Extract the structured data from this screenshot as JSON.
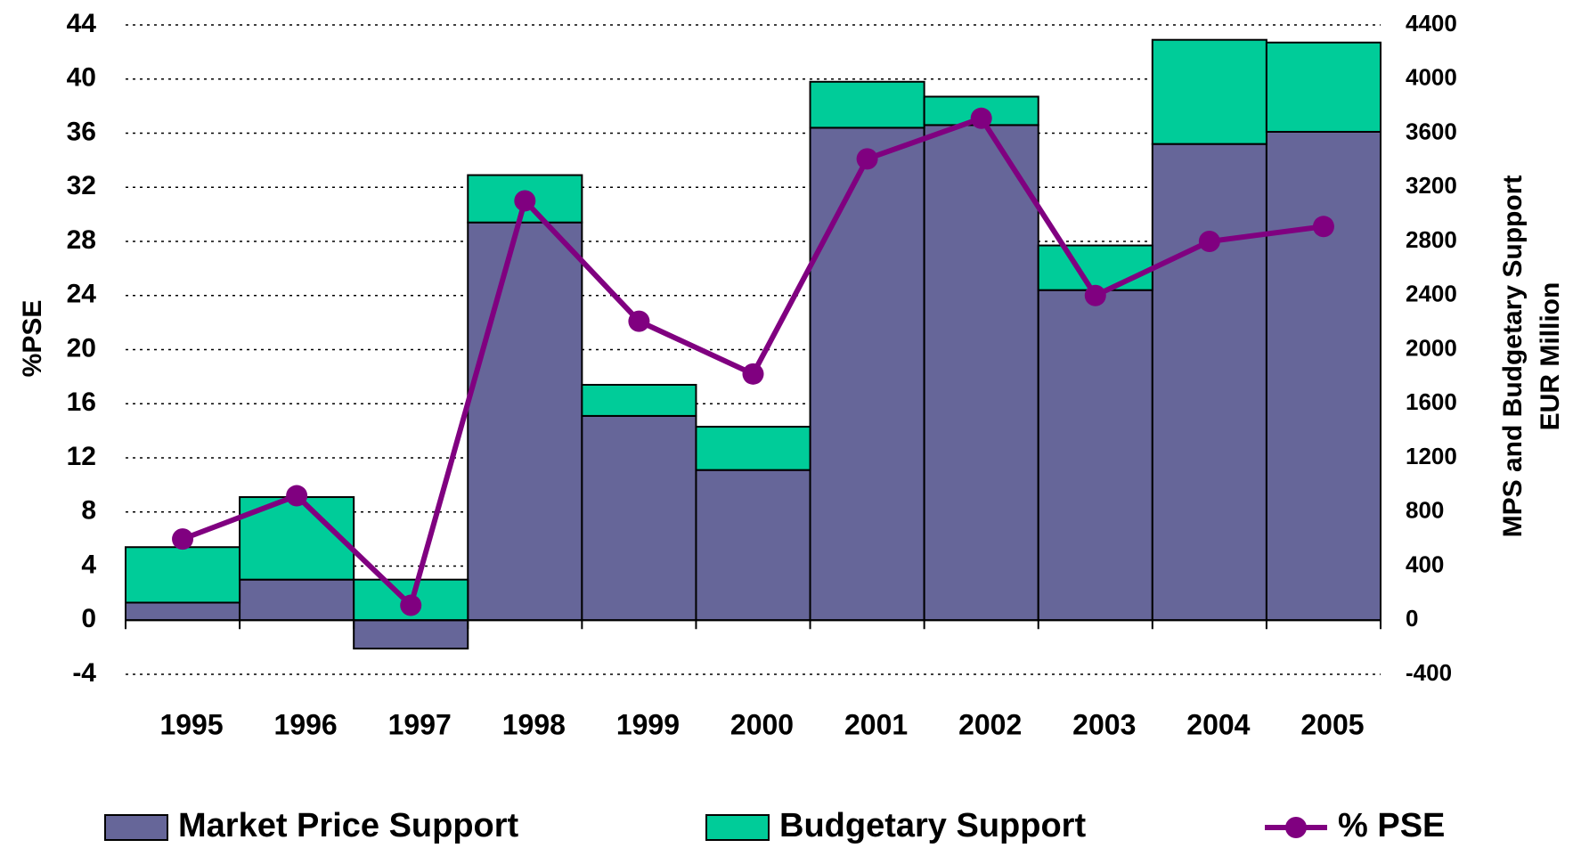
{
  "chart_data": {
    "type": "bar",
    "y_label": "%PSE",
    "y2_label": [
      "MPS and Budgetary Support",
      "EUR Million"
    ],
    "categories": [
      "1995",
      "1996",
      "1997",
      "1998",
      "1999",
      "2000",
      "2001",
      "2002",
      "2003",
      "2004",
      "2005"
    ],
    "series": [
      {
        "name": "Market Price Support",
        "type": "bar",
        "axis": "y2",
        "color": "#666699",
        "values": [
          130,
          300,
          -210,
          2940,
          1510,
          1110,
          3640,
          3660,
          2440,
          3520,
          3610
        ]
      },
      {
        "name": "Budgetary Support",
        "type": "bar",
        "axis": "y2",
        "color": "#00cc99",
        "values": [
          410,
          610,
          300,
          350,
          230,
          320,
          340,
          210,
          330,
          770,
          660
        ]
      },
      {
        "name": "% PSE",
        "type": "line",
        "axis": "y",
        "color": "#800080",
        "values": [
          6.0,
          9.2,
          1.1,
          31.0,
          22.1,
          18.2,
          34.1,
          37.1,
          24.0,
          28.0,
          29.1
        ]
      }
    ],
    "ylim": [
      -4,
      44
    ],
    "yticks": [
      -4,
      0,
      4,
      8,
      12,
      16,
      20,
      24,
      28,
      32,
      36,
      40,
      44
    ],
    "y2lim": [
      -400,
      4400
    ],
    "y2ticks": [
      -400,
      0,
      400,
      800,
      1200,
      1600,
      2000,
      2400,
      2800,
      3200,
      3600,
      4000,
      4400
    ],
    "grid": true,
    "legend": "bottom"
  }
}
